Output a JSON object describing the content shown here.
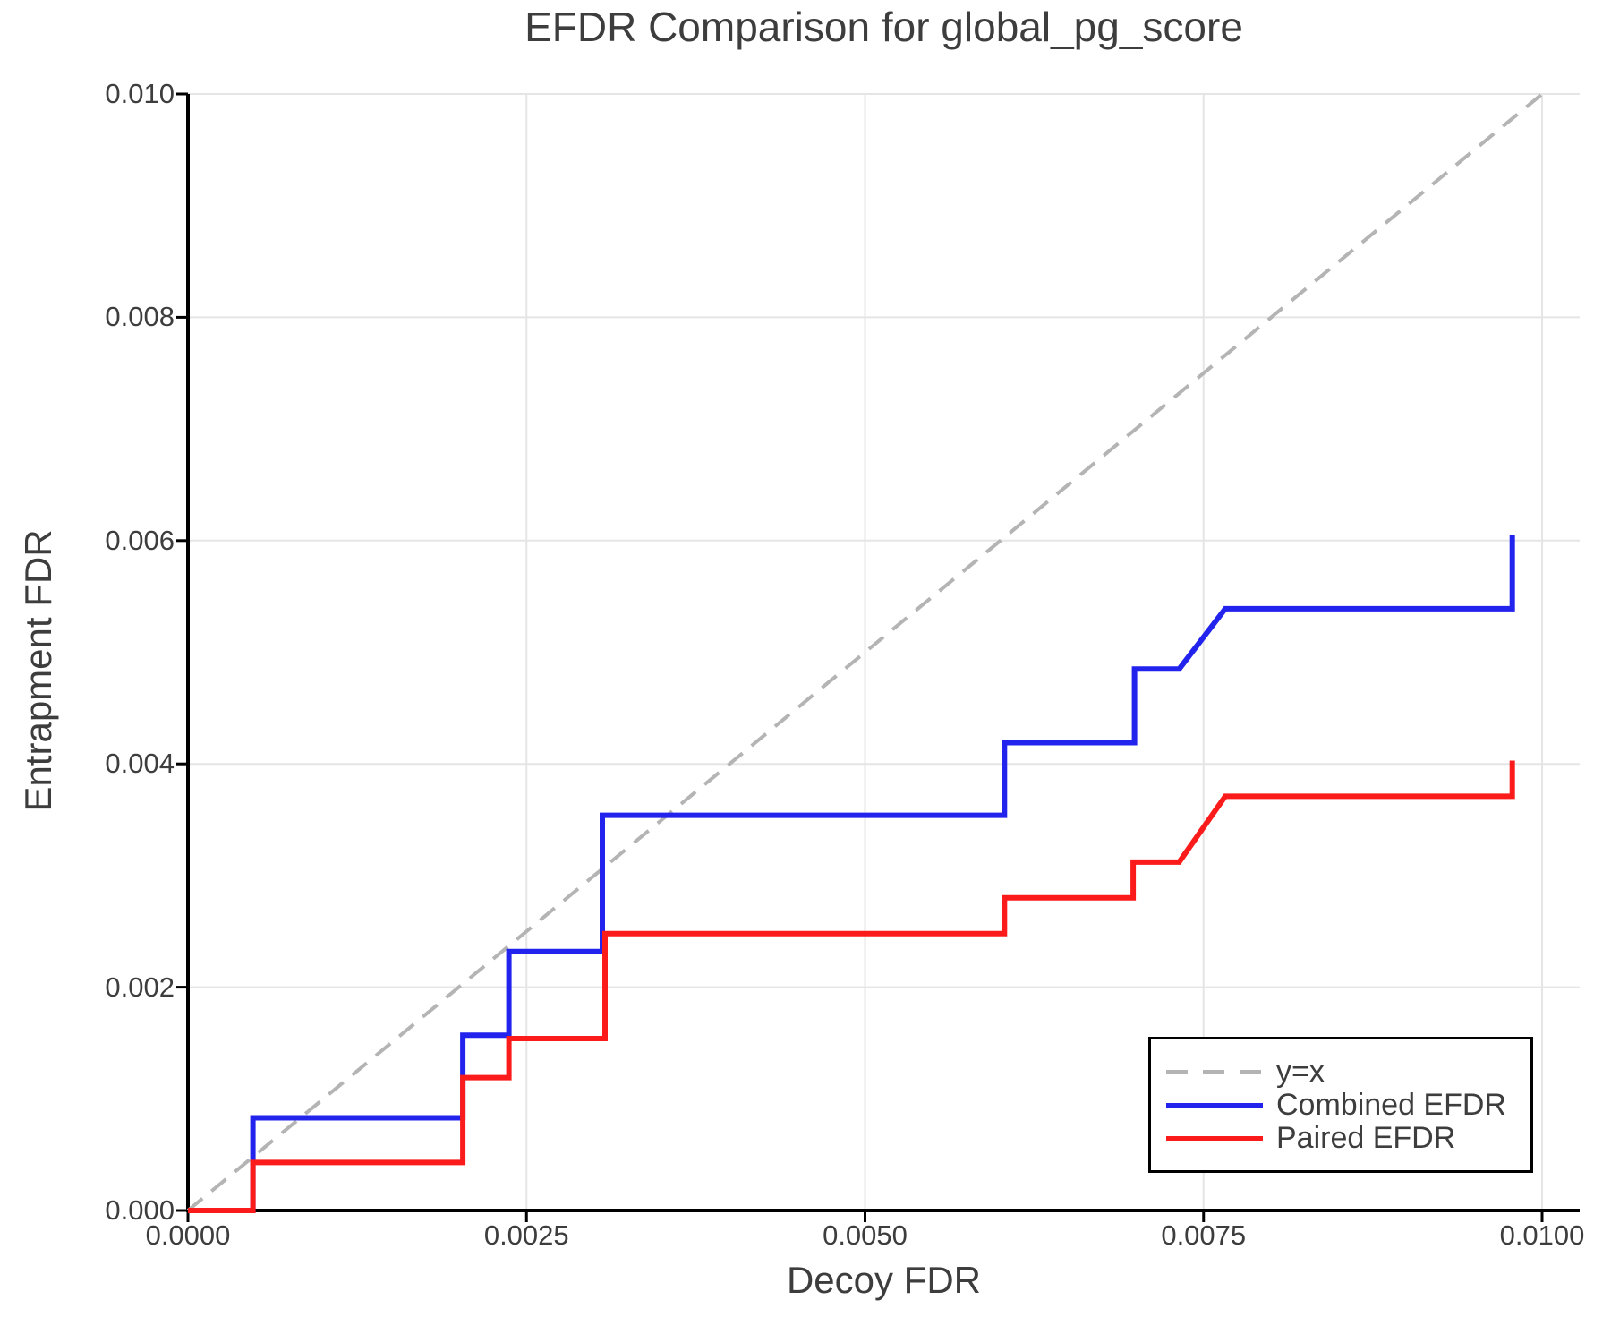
{
  "chart_data": {
    "type": "line",
    "title": "EFDR Comparison for global_pg_score",
    "xlabel": "Decoy FDR",
    "ylabel": "Entrapment FDR",
    "xlim": [
      0,
      0.0103
    ],
    "ylim": [
      0,
      0.01
    ],
    "grid": true,
    "legend_position": "lower right",
    "x_ticks": [
      0.0,
      0.0025,
      0.005,
      0.0075,
      0.01
    ],
    "x_tick_labels": [
      "0.0000",
      "0.0025",
      "0.0050",
      "0.0075",
      "0.0100"
    ],
    "y_ticks": [
      0.0,
      0.002,
      0.004,
      0.006,
      0.008,
      0.01
    ],
    "y_tick_labels": [
      "0.000",
      "0.002",
      "0.004",
      "0.006",
      "0.008",
      "0.010"
    ],
    "series": [
      {
        "name": "y=x",
        "style": "dashed",
        "color": "#b4b4b4",
        "points": [
          [
            0,
            0
          ],
          [
            0.01,
            0.01
          ]
        ]
      },
      {
        "name": "Combined EFDR",
        "style": "solid",
        "color": "#2323ee",
        "points": [
          [
            0,
            0
          ],
          [
            0.00048,
            0
          ],
          [
            0.00048,
            0.00083
          ],
          [
            0.00203,
            0.00083
          ],
          [
            0.00203,
            0.00157
          ],
          [
            0.00237,
            0.00157
          ],
          [
            0.00237,
            0.00232
          ],
          [
            0.00306,
            0.00232
          ],
          [
            0.00306,
            0.00354
          ],
          [
            0.00603,
            0.00354
          ],
          [
            0.00603,
            0.00419
          ],
          [
            0.00699,
            0.00419
          ],
          [
            0.00699,
            0.00485
          ],
          [
            0.00732,
            0.00485
          ],
          [
            0.00766,
            0.00539
          ],
          [
            0.00978,
            0.00539
          ],
          [
            0.00978,
            0.00605
          ]
        ]
      },
      {
        "name": "Paired EFDR",
        "style": "solid",
        "color": "#fb1b1b",
        "points": [
          [
            0,
            0
          ],
          [
            0.00048,
            0
          ],
          [
            0.00048,
            0.00043
          ],
          [
            0.00203,
            0.00043
          ],
          [
            0.00203,
            0.00119
          ],
          [
            0.00237,
            0.00119
          ],
          [
            0.00237,
            0.00154
          ],
          [
            0.00308,
            0.00154
          ],
          [
            0.00308,
            0.00248
          ],
          [
            0.00603,
            0.00248
          ],
          [
            0.00603,
            0.0028
          ],
          [
            0.00698,
            0.0028
          ],
          [
            0.00698,
            0.00312
          ],
          [
            0.00732,
            0.00312
          ],
          [
            0.00766,
            0.00371
          ],
          [
            0.00978,
            0.00371
          ],
          [
            0.00978,
            0.00403
          ]
        ]
      }
    ]
  },
  "legend": {
    "items": [
      {
        "label": "y=x",
        "color": "#b4b4b4",
        "dashed": true
      },
      {
        "label": "Combined EFDR",
        "color": "#2323ee",
        "dashed": false
      },
      {
        "label": "Paired EFDR",
        "color": "#fb1b1b",
        "dashed": false
      }
    ]
  },
  "style_colors": {
    "grid": "#e5e5e5",
    "spine": "#000000",
    "text": "#3d3d3d",
    "background": "#ffffff"
  }
}
